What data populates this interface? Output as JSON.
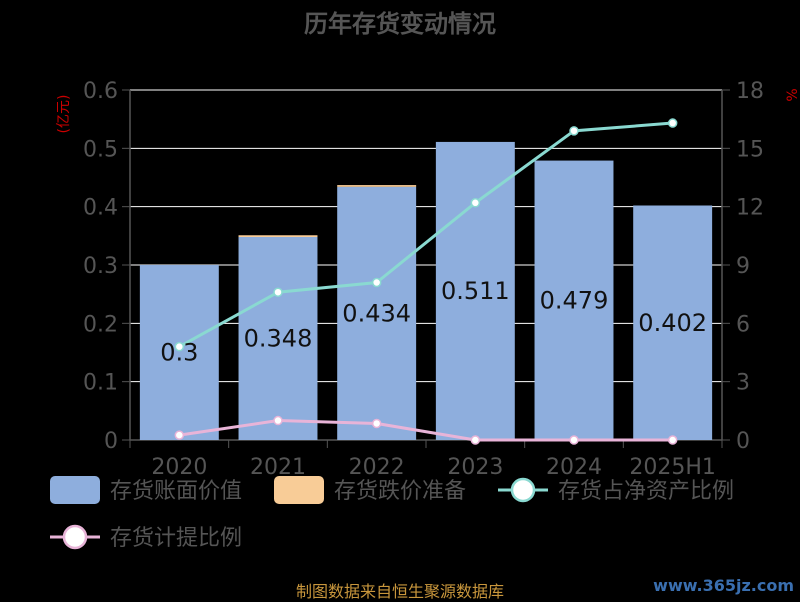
{
  "chart_data": {
    "type": "bar",
    "title": "历年存货变动情况",
    "left_unit": "(亿元)",
    "right_unit": "%",
    "categories": [
      "2020",
      "2021",
      "2022",
      "2023",
      "2024",
      "2025H1"
    ],
    "ylim_left": [
      0,
      0.6
    ],
    "yticks_left": [
      "0",
      "0.1",
      "0.2",
      "0.3",
      "0.4",
      "0.5",
      "0.6"
    ],
    "ylim_right": [
      0,
      18
    ],
    "yticks_right": [
      "0",
      "3",
      "6",
      "9",
      "12",
      "15",
      "18"
    ],
    "grid": true,
    "legend_position": "bottom",
    "series": [
      {
        "name": "存货账面价值",
        "kind": "bar",
        "axis": "left",
        "color": "#8eaedd",
        "values": [
          0.3,
          0.348,
          0.434,
          0.511,
          0.479,
          0.402
        ],
        "labels": [
          "0.3",
          "0.348",
          "0.434",
          "0.511",
          "0.479",
          "0.402"
        ]
      },
      {
        "name": "存货跌价准备",
        "kind": "bar-stacked",
        "axis": "left",
        "color": "#f8cc97",
        "values": [
          0,
          0.003,
          0.003,
          0,
          0,
          0
        ]
      },
      {
        "name": "存货占净资产比例",
        "kind": "line",
        "axis": "right",
        "color": "#8ad9d1",
        "values": [
          4.8,
          7.6,
          8.1,
          12.2,
          15.9,
          16.3
        ]
      },
      {
        "name": "存货计提比例",
        "kind": "line",
        "axis": "right",
        "color": "#e8b4d8",
        "values": [
          0.25,
          1.0,
          0.85,
          0.0,
          0.0,
          0.0
        ]
      }
    ]
  },
  "footer": {
    "source": "制图数据来自恒生聚源数据库",
    "watermark": "www.365jz.com"
  }
}
